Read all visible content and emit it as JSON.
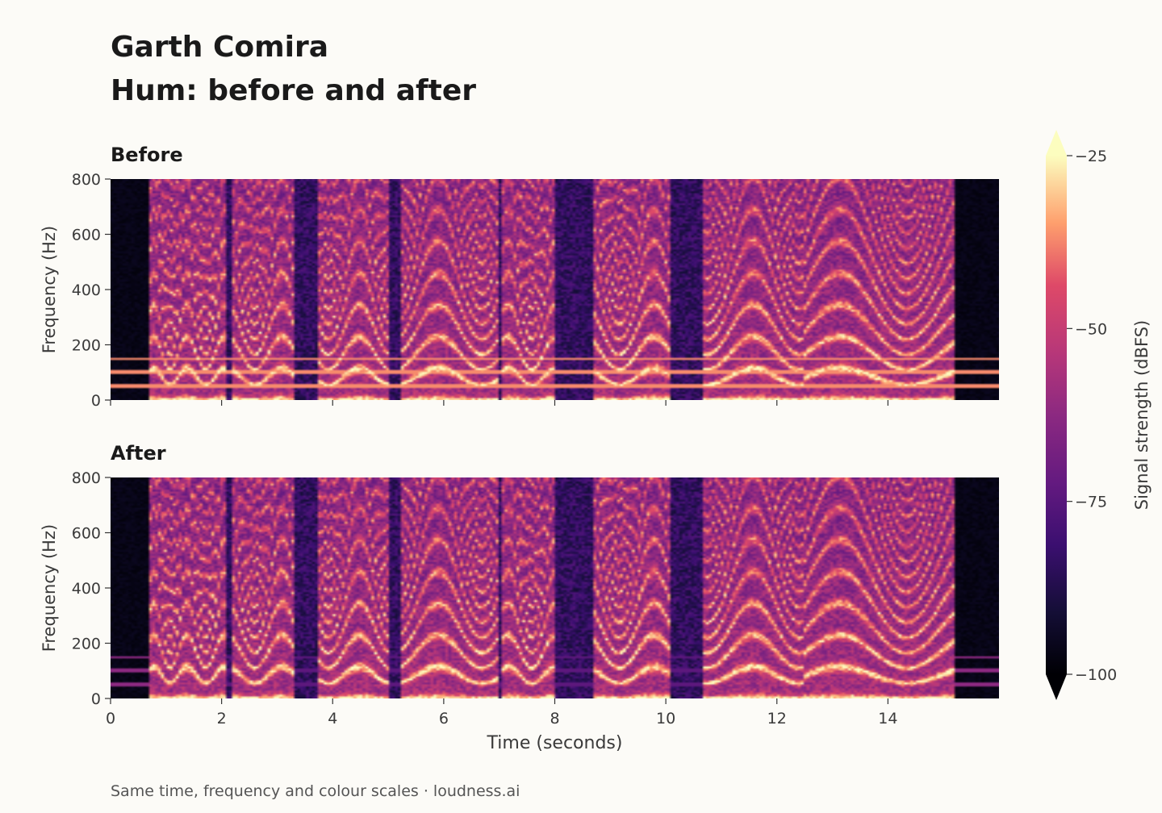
{
  "header": {
    "title_line1": "Garth Comira",
    "title_line2": "Hum: before and after"
  },
  "footnote": "Same time, frequency and colour scales  ·  loudness.ai",
  "colorbar": {
    "label": "Signal strength (dBFS)",
    "ticks": [
      -25,
      -50,
      -75,
      -100
    ],
    "tick_labels": [
      "−25",
      "−50",
      "−75",
      "−100"
    ],
    "range": [
      -100,
      -25
    ],
    "colormap": "magma",
    "extend": "both"
  },
  "chart_data": [
    {
      "type": "heatmap",
      "title": "Before",
      "xlabel": "",
      "ylabel": "Frequency (Hz)",
      "xlim": [
        0,
        16
      ],
      "ylim": [
        0,
        800
      ],
      "x_ticks": [
        0,
        2,
        4,
        6,
        8,
        10,
        12,
        14
      ],
      "y_ticks": [
        0,
        200,
        400,
        600,
        800
      ],
      "tick_labels_x_visible": false,
      "hum_bands_hz": [
        50,
        100,
        150
      ],
      "segments_s": [
        [
          0.7,
          1.35
        ],
        [
          1.35,
          2.1
        ],
        [
          2.2,
          3.3
        ],
        [
          3.75,
          5.0
        ],
        [
          5.25,
          7.0
        ],
        [
          7.05,
          8.0
        ],
        [
          8.7,
          10.1
        ],
        [
          10.65,
          12.5
        ],
        [
          12.5,
          15.2
        ]
      ]
    },
    {
      "type": "heatmap",
      "title": "After",
      "xlabel": "Time (seconds)",
      "ylabel": "Frequency (Hz)",
      "xlim": [
        0,
        16
      ],
      "ylim": [
        0,
        800
      ],
      "x_ticks": [
        0,
        2,
        4,
        6,
        8,
        10,
        12,
        14
      ],
      "x_tick_labels": [
        "0",
        "2",
        "4",
        "6",
        "8",
        "10",
        "12",
        "14"
      ],
      "y_ticks": [
        0,
        200,
        400,
        600,
        800
      ],
      "y_tick_labels": [
        "0",
        "200",
        "400",
        "600",
        "800"
      ],
      "hum_bands_hz": [
        50,
        100,
        150
      ],
      "segments_s": [
        [
          0.7,
          1.35
        ],
        [
          1.35,
          2.1
        ],
        [
          2.2,
          3.3
        ],
        [
          3.75,
          5.0
        ],
        [
          5.25,
          7.0
        ],
        [
          7.05,
          8.0
        ],
        [
          8.7,
          10.1
        ],
        [
          10.65,
          12.5
        ],
        [
          12.5,
          15.2
        ]
      ]
    }
  ]
}
